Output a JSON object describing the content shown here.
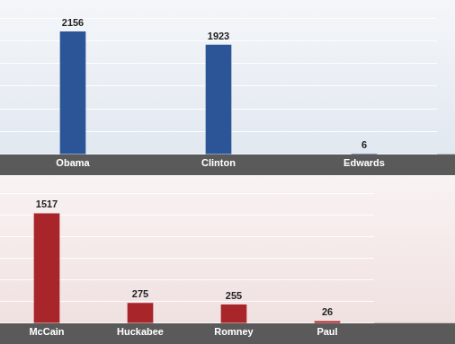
{
  "chart_data": [
    {
      "type": "bar",
      "categories": [
        "Obama",
        "Clinton",
        "Edwards"
      ],
      "values": [
        2156,
        1923,
        6
      ],
      "color": "#2b5597",
      "ylim": [
        0,
        2400
      ],
      "yticks": [
        0,
        400,
        800,
        1200,
        1600,
        2000,
        2400
      ],
      "grid": true,
      "data_labels": true,
      "tick_labels": "x"
    },
    {
      "type": "bar",
      "categories": [
        "McCain",
        "Huckabee",
        "Romney",
        "Paul"
      ],
      "values": [
        1517,
        275,
        255,
        26
      ],
      "color": "#a8252a",
      "ylim": [
        0,
        1800
      ],
      "yticks": [
        0,
        300,
        600,
        900,
        1200,
        1500,
        1800
      ],
      "grid": true,
      "data_labels": true,
      "tick_labels": "x"
    }
  ]
}
